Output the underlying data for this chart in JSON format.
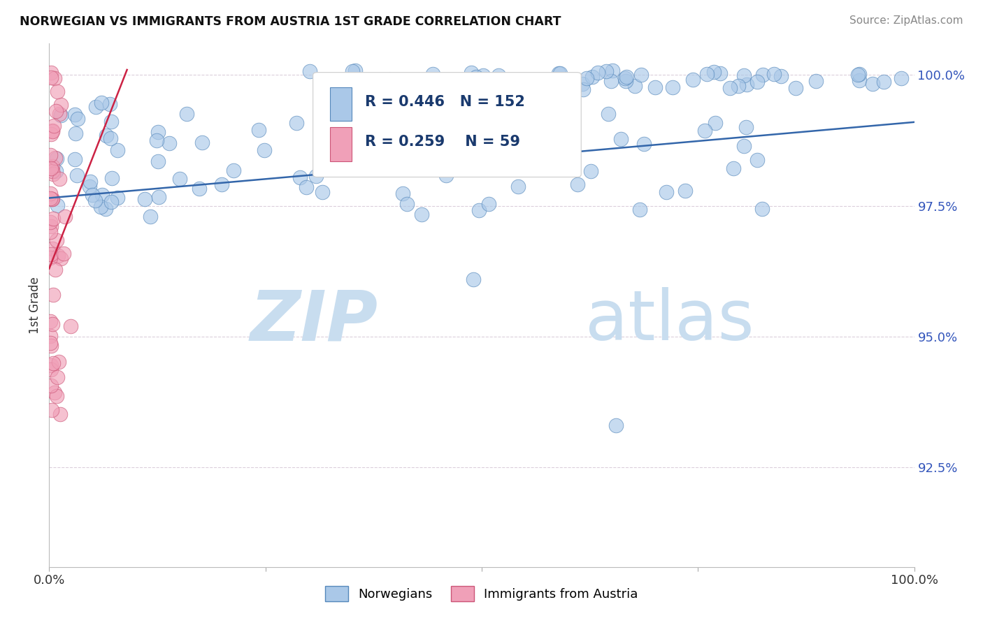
{
  "title": "NORWEGIAN VS IMMIGRANTS FROM AUSTRIA 1ST GRADE CORRELATION CHART",
  "source": "Source: ZipAtlas.com",
  "ylabel": "1st Grade",
  "R_norwegian": 0.446,
  "N_norwegian": 152,
  "R_austrian": 0.259,
  "N_austrian": 59,
  "norwegian_color": "#aac8e8",
  "norwegian_edge": "#5588bb",
  "austrian_color": "#f0a0b8",
  "austrian_edge": "#cc5577",
  "trend_norwegian_color": "#3366aa",
  "trend_austrian_color": "#cc2244",
  "background_color": "#ffffff",
  "watermark_zip": "#c8ddef",
  "watermark_atlas": "#c8ddef",
  "grid_color": "#ccbbcc",
  "ytick_color": "#3355bb",
  "xlim": [
    0.0,
    1.0
  ],
  "ylim": [
    0.906,
    1.006
  ],
  "yticks": [
    0.925,
    0.95,
    0.975,
    1.0
  ],
  "ytick_labels": [
    "92.5%",
    "95.0%",
    "97.5%",
    "100.0%"
  ]
}
